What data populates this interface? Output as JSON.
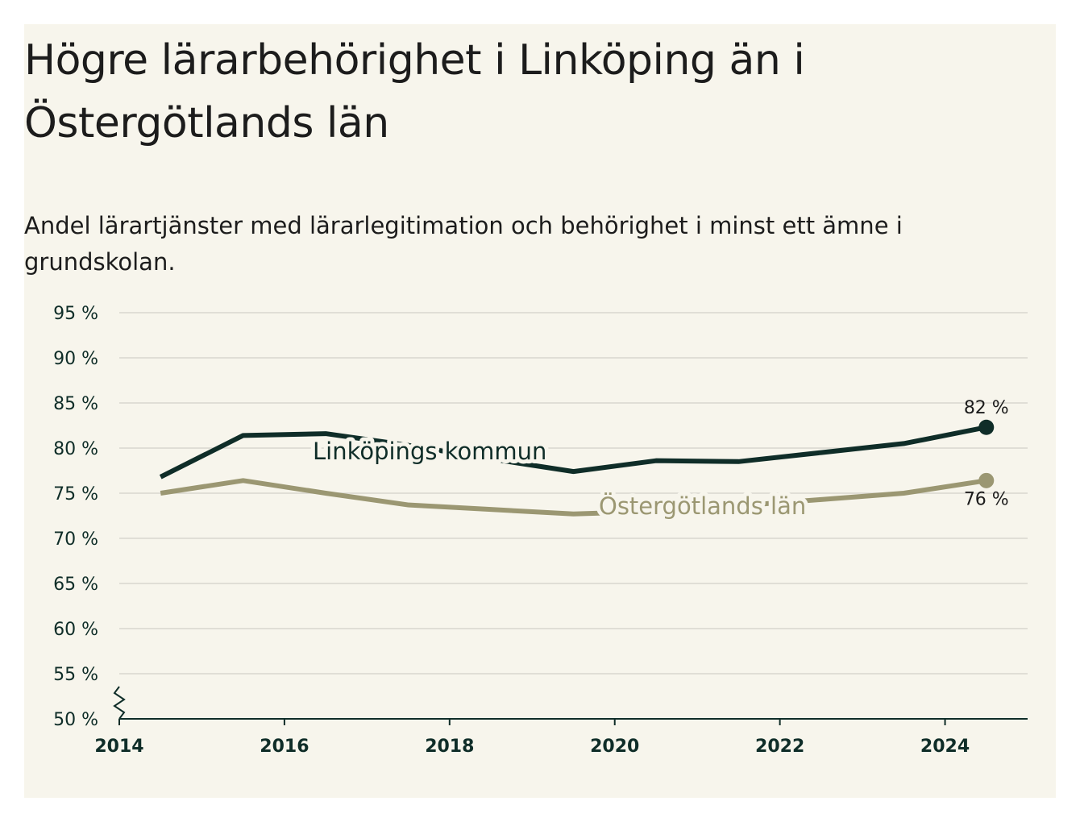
{
  "chart_data": {
    "type": "line",
    "title": "Högre lärarbehörighet i Linköping än i Östergötlands län",
    "subtitle": "Andel lärartjänster med lärarlegitimation och behörighet i minst ett ämne i grundskolan.",
    "ylim": [
      50,
      95
    ],
    "xlim": [
      2014,
      2025
    ],
    "y_ticks": [
      50,
      55,
      60,
      65,
      70,
      75,
      80,
      85,
      90,
      95
    ],
    "y_tick_labels": [
      "50 %",
      "55 %",
      "60 %",
      "65 %",
      "70 %",
      "75 %",
      "80 %",
      "85 %",
      "90 %",
      "95 %"
    ],
    "x_ticks": [
      2014,
      2016,
      2018,
      2020,
      2022,
      2024
    ],
    "x_tick_labels": [
      "2014",
      "2016",
      "2018",
      "2020",
      "2022",
      "2024"
    ],
    "grid": true,
    "legend": "inline",
    "series": [
      {
        "name": "Linköpings kommun",
        "color": "#0f2d28",
        "x": [
          2014.5,
          2015.5,
          2016.5,
          2017.5,
          2018.5,
          2019.5,
          2020.5,
          2021.5,
          2022.5,
          2023.5,
          2024.5
        ],
        "values": [
          76.8,
          81.4,
          81.6,
          80.3,
          78.8,
          77.4,
          78.6,
          78.5,
          79.5,
          80.5,
          82.3
        ],
        "end_label": "82 %"
      },
      {
        "name": "Östergötlands län",
        "color": "#9b9772",
        "x": [
          2014.5,
          2015.5,
          2016.5,
          2017.5,
          2018.5,
          2019.5,
          2020.5,
          2021.5,
          2022.5,
          2023.5,
          2024.5
        ],
        "values": [
          75.0,
          76.4,
          75.0,
          73.7,
          73.2,
          72.7,
          73.0,
          73.6,
          74.3,
          75.0,
          76.4
        ],
        "end_label": "76 %"
      }
    ]
  }
}
